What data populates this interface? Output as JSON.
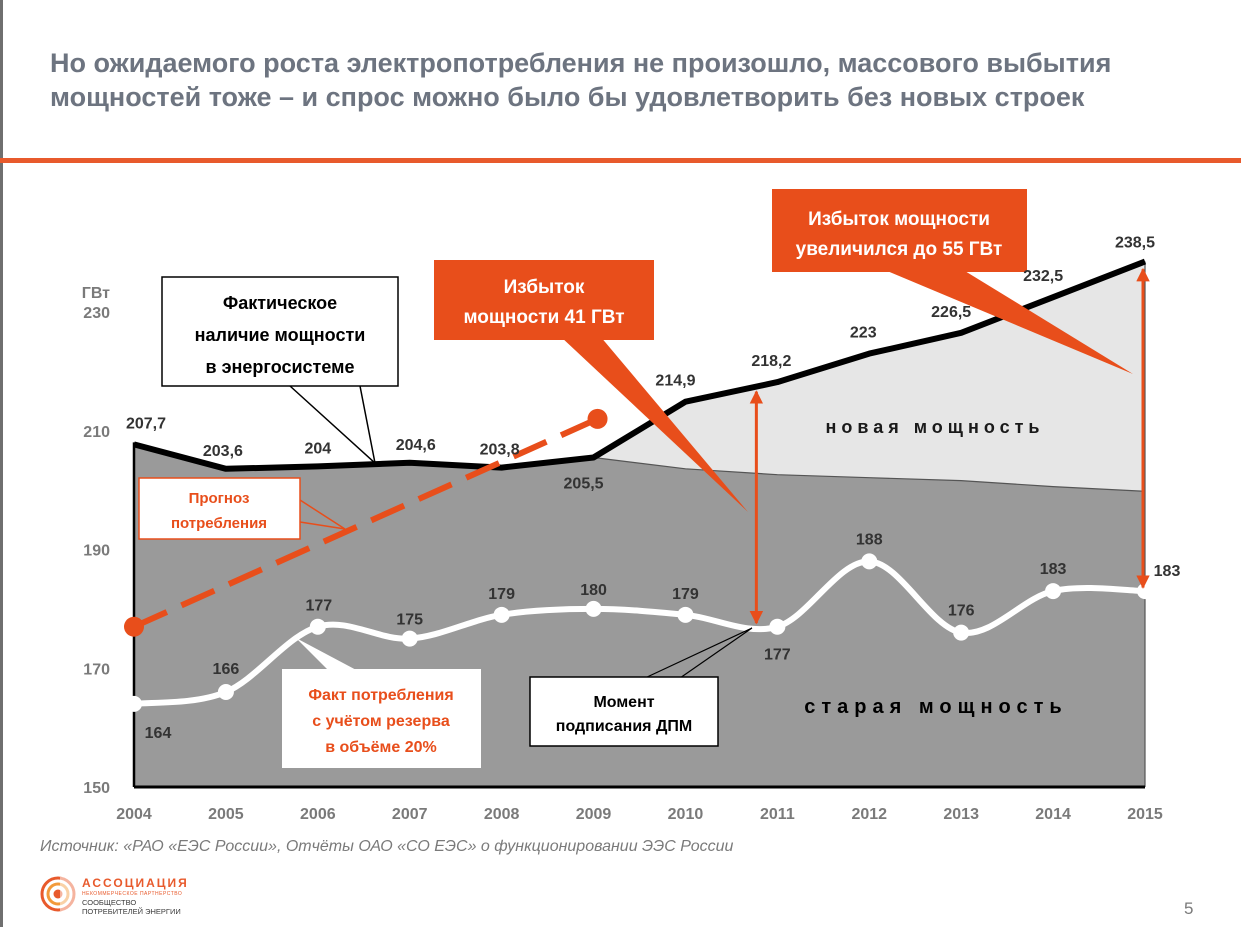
{
  "slide": {
    "title": "Но ожидаемого роста электропотребления не произошло, массового выбытия мощностей тоже – и спрос можно было бы удовлетворить без новых строек",
    "source": "Источник: «РАО «ЕЭС России», Отчёты ОАО «СО ЕЭС» о функционировании ЭЭС России",
    "page_number": "5",
    "logo": {
      "name": "АССОЦИАЦИЯ",
      "subtitle": "НЕКОММЕРЧЕСКОЕ ПАРТНЕРСТВО",
      "line1": "СООБЩЕСТВО",
      "line2": "ПОТРЕБИТЕЛЕЙ ЭНЕРГИИ"
    }
  },
  "colors": {
    "accent": "#e84e1b",
    "title_gray": "#6d7480",
    "old_capacity": "#9a9a9a",
    "new_capacity": "#e6e6e6",
    "capacity_line": "#000000",
    "consumption_line": "#ffffff"
  },
  "chart_data": {
    "type": "area",
    "ylabel": "ГВт",
    "ylim": [
      150,
      240
    ],
    "yticks": [
      150,
      170,
      190,
      210,
      230
    ],
    "x": [
      "2004",
      "2005",
      "2006",
      "2007",
      "2008",
      "2009",
      "2010",
      "2011",
      "2012",
      "2013",
      "2014",
      "2015"
    ],
    "series": [
      {
        "name": "Фактическое наличие мощности в энергосистеме",
        "kind": "line",
        "values": [
          207.7,
          203.6,
          204,
          204.6,
          203.8,
          205.5,
          214.9,
          218.2,
          223,
          226.5,
          232.5,
          238.5
        ]
      },
      {
        "name": "Факт потребления с учётом резерва в объёме 20%",
        "kind": "smooth-line",
        "values": [
          164,
          166,
          177,
          175,
          179,
          180,
          179,
          177,
          188,
          176,
          183,
          183
        ]
      },
      {
        "name": "Прогноз потребления",
        "kind": "dashed-line",
        "x": [
          "2004",
          "2009"
        ],
        "values": [
          177,
          212
        ]
      },
      {
        "name": "старая мощность",
        "kind": "area",
        "values": [
          207.7,
          203.6,
          204,
          204.6,
          203.8,
          205.5,
          203.6,
          202.6,
          202.1,
          201.6,
          200.6,
          199.8
        ]
      }
    ],
    "point_labels": {
      "capacity": [
        "207,7",
        "203,6",
        "204",
        "204,6",
        "203,8",
        "205,5",
        "214,9",
        "218,2",
        "223",
        "226,5",
        "232,5",
        "238,5"
      ],
      "consumption": [
        "164",
        "166",
        "177",
        "175",
        "179",
        "180",
        "179",
        "177",
        "188",
        "176",
        "183",
        "183"
      ]
    },
    "annotations": {
      "capacity_callout": {
        "lines": [
          "Фактическое",
          "наличие мощности",
          "в энергосистеме"
        ]
      },
      "forecast_callout": {
        "lines": [
          "Прогноз",
          "потребления"
        ]
      },
      "surplus_2011": {
        "lines": [
          "Избыток",
          "мощности 41 ГВт"
        ]
      },
      "surplus_2015": {
        "lines": [
          "Избыток мощности",
          "увеличился до 55 ГВт"
        ]
      },
      "consumption_callout": {
        "lines": [
          "Факт потребления",
          "с учётом резерва",
          "в объёме 20%"
        ]
      },
      "dpm_callout": {
        "lines": [
          "Момент",
          "подписания ДПМ"
        ]
      },
      "new_capacity_label": "новая мощность",
      "old_capacity_label": "старая мощность"
    }
  }
}
